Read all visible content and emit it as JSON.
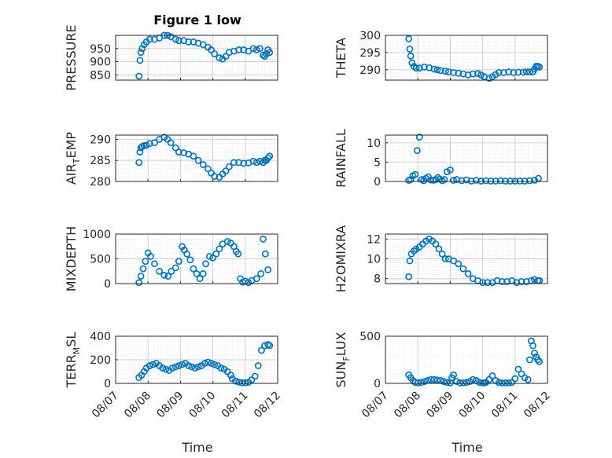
{
  "chart_data": {
    "type": "scatter",
    "title": "Figure 1 low",
    "xlabel": "Time",
    "xtick_labels": [
      "08/07",
      "08/08",
      "08/09",
      "08/10",
      "08/11",
      "08/12"
    ],
    "xlim": [
      0,
      5
    ],
    "marker": "open-circle",
    "color": "#0072BD",
    "grid": "on",
    "subplots": [
      {
        "ylabel": "PRESSURE",
        "ylim": [
          830,
          1000
        ],
        "yticks": [
          850,
          900,
          950
        ],
        "x": [
          0.72,
          0.75,
          0.78,
          0.82,
          0.88,
          0.95,
          1.05,
          1.2,
          1.35,
          1.5,
          1.6,
          1.7,
          1.85,
          1.95,
          2.1,
          2.25,
          2.4,
          2.55,
          2.7,
          2.85,
          2.95,
          3.05,
          3.2,
          3.3,
          3.4,
          3.5,
          3.65,
          3.8,
          3.95,
          4.1,
          4.25,
          4.35,
          4.45,
          4.55,
          4.6,
          4.65,
          4.7,
          4.75
        ],
        "y": [
          845,
          905,
          935,
          950,
          965,
          975,
          985,
          985,
          990,
          1000,
          1000,
          995,
          985,
          980,
          980,
          975,
          975,
          970,
          965,
          955,
          945,
          930,
          915,
          910,
          920,
          935,
          940,
          945,
          945,
          940,
          950,
          945,
          950,
          925,
          920,
          930,
          945,
          935
        ]
      },
      {
        "ylabel": "THETA",
        "ylim": [
          287,
          300
        ],
        "yticks": [
          290,
          295,
          300
        ],
        "x": [
          0.72,
          0.75,
          0.78,
          0.82,
          0.88,
          0.95,
          1.05,
          1.2,
          1.35,
          1.5,
          1.6,
          1.7,
          1.85,
          1.95,
          2.1,
          2.25,
          2.4,
          2.55,
          2.7,
          2.85,
          2.95,
          3.05,
          3.2,
          3.3,
          3.4,
          3.5,
          3.65,
          3.8,
          3.95,
          4.1,
          4.25,
          4.35,
          4.45,
          4.55,
          4.6,
          4.65,
          4.7,
          4.75
        ],
        "y": [
          299,
          296,
          294,
          292,
          291,
          290.5,
          290.5,
          290.8,
          290.6,
          290.2,
          290,
          289.8,
          289.6,
          289.4,
          289.2,
          289,
          288.8,
          288.5,
          288.8,
          288.9,
          288.5,
          288,
          287.5,
          288,
          288.6,
          289.2,
          289.2,
          289.4,
          289.2,
          289.3,
          289.3,
          289.4,
          289.4,
          289.4,
          290.2,
          291,
          291,
          290.8
        ]
      },
      {
        "ylabel": "AIR_TEMP",
        "ylim": [
          280,
          291
        ],
        "yticks": [
          280,
          285,
          290
        ],
        "x": [
          0.72,
          0.75,
          0.78,
          0.82,
          0.88,
          0.95,
          1.05,
          1.2,
          1.35,
          1.5,
          1.6,
          1.7,
          1.85,
          1.95,
          2.1,
          2.25,
          2.4,
          2.55,
          2.7,
          2.85,
          2.95,
          3.05,
          3.2,
          3.3,
          3.4,
          3.5,
          3.65,
          3.8,
          3.95,
          4.1,
          4.25,
          4.35,
          4.45,
          4.55,
          4.6,
          4.65,
          4.7,
          4.75
        ],
        "y": [
          284.5,
          287,
          288,
          288.3,
          288.5,
          288.6,
          289,
          289.2,
          290,
          290.5,
          290,
          289.2,
          288,
          287,
          286.8,
          286.5,
          286,
          285,
          284,
          283,
          282,
          281.2,
          281,
          281.8,
          282.5,
          283.5,
          284.5,
          284.5,
          284.3,
          284.4,
          284.8,
          284.5,
          284.8,
          284.5,
          285,
          285,
          285.6,
          286
        ]
      },
      {
        "ylabel": "RAINFALL",
        "ylim": [
          0,
          12
        ],
        "yticks": [
          0,
          5,
          10
        ],
        "x": [
          0.72,
          0.78,
          0.85,
          0.92,
          0.98,
          1.05,
          1.12,
          1.18,
          1.25,
          1.32,
          1.4,
          1.48,
          1.55,
          1.62,
          1.68,
          1.75,
          1.82,
          1.9,
          2.0,
          2.1,
          2.2,
          2.35,
          2.5,
          2.65,
          2.8,
          2.95,
          3.1,
          3.25,
          3.4,
          3.55,
          3.7,
          3.85,
          4.0,
          4.15,
          4.3,
          4.45,
          4.6,
          4.72
        ],
        "y": [
          0.3,
          0.5,
          1.5,
          1.8,
          8.0,
          11.5,
          0.5,
          0.2,
          0.8,
          1.2,
          0.4,
          0.3,
          0.5,
          1.0,
          0.6,
          0.2,
          0.5,
          2.5,
          3.0,
          0.3,
          0.5,
          0.2,
          0.4,
          0.1,
          0.3,
          0.1,
          0.2,
          0.1,
          0.1,
          0.2,
          0.1,
          0.1,
          0.1,
          0.1,
          0.1,
          0.2,
          0.3,
          0.8
        ]
      },
      {
        "ylabel": "MIXDEPTH",
        "ylim": [
          0,
          1000
        ],
        "yticks": [
          0,
          500,
          1000
        ],
        "x": [
          0.72,
          0.78,
          0.85,
          0.92,
          1.0,
          1.08,
          1.2,
          1.35,
          1.5,
          1.62,
          1.72,
          1.85,
          1.95,
          2.05,
          2.12,
          2.2,
          2.3,
          2.4,
          2.5,
          2.6,
          2.7,
          2.78,
          2.9,
          3.0,
          3.1,
          3.2,
          3.3,
          3.45,
          3.55,
          3.65,
          3.72,
          3.78,
          3.85,
          3.92,
          4.0,
          4.1,
          4.2,
          4.35,
          4.48,
          4.55,
          4.62,
          4.7
        ],
        "y": [
          20,
          150,
          300,
          450,
          620,
          550,
          400,
          250,
          170,
          150,
          250,
          320,
          450,
          750,
          680,
          600,
          480,
          300,
          200,
          100,
          200,
          400,
          550,
          520,
          600,
          700,
          800,
          850,
          820,
          750,
          650,
          600,
          100,
          30,
          50,
          20,
          60,
          100,
          200,
          900,
          600,
          280
        ]
      },
      {
        "ylabel": "H2OMIXRA",
        "ylim": [
          7.5,
          12.5
        ],
        "yticks": [
          8,
          10,
          12
        ],
        "x": [
          0.72,
          0.75,
          0.8,
          0.88,
          0.95,
          1.05,
          1.15,
          1.25,
          1.35,
          1.45,
          1.55,
          1.65,
          1.75,
          1.85,
          1.95,
          2.1,
          2.25,
          2.4,
          2.55,
          2.7,
          2.85,
          3.0,
          3.15,
          3.3,
          3.45,
          3.6,
          3.75,
          3.9,
          4.05,
          4.2,
          4.35,
          4.5,
          4.6,
          4.7,
          4.75
        ],
        "y": [
          8.2,
          9.8,
          10.5,
          10.8,
          11.0,
          11.2,
          11.5,
          11.8,
          12.0,
          11.8,
          11.5,
          11.0,
          10.5,
          10.0,
          10.0,
          9.8,
          9.5,
          9.0,
          8.5,
          8.0,
          7.8,
          7.6,
          7.6,
          7.6,
          7.8,
          7.7,
          7.7,
          7.8,
          7.6,
          7.7,
          7.7,
          7.8,
          7.9,
          7.8,
          7.8
        ]
      },
      {
        "ylabel": "TERR_MSL",
        "ylim": [
          0,
          400
        ],
        "yticks": [
          0,
          200,
          400
        ],
        "x": [
          0.72,
          0.8,
          0.88,
          0.95,
          1.05,
          1.15,
          1.25,
          1.35,
          1.45,
          1.55,
          1.65,
          1.75,
          1.85,
          1.95,
          2.05,
          2.15,
          2.25,
          2.35,
          2.45,
          2.55,
          2.65,
          2.75,
          2.85,
          2.95,
          3.05,
          3.15,
          3.25,
          3.35,
          3.45,
          3.55,
          3.6,
          3.7,
          3.8,
          3.9,
          4.0,
          4.1,
          4.2,
          4.3,
          4.4,
          4.5,
          4.6,
          4.7,
          4.75
        ],
        "y": [
          50,
          70,
          100,
          130,
          150,
          160,
          170,
          150,
          130,
          120,
          110,
          130,
          140,
          150,
          160,
          170,
          150,
          140,
          130,
          140,
          150,
          170,
          180,
          170,
          160,
          150,
          130,
          120,
          100,
          70,
          40,
          20,
          10,
          5,
          5,
          10,
          30,
          60,
          150,
          280,
          320,
          330,
          320
        ]
      },
      {
        "ylabel": "SUN_FLUX",
        "ylim": [
          0,
          500
        ],
        "yticks": [
          0,
          500
        ],
        "x": [
          0.72,
          0.78,
          0.85,
          0.92,
          1.0,
          1.1,
          1.2,
          1.3,
          1.4,
          1.5,
          1.6,
          1.7,
          1.8,
          1.9,
          2.0,
          2.05,
          2.1,
          2.2,
          2.3,
          2.4,
          2.5,
          2.6,
          2.7,
          2.8,
          2.9,
          3.0,
          3.05,
          3.1,
          3.2,
          3.3,
          3.4,
          3.5,
          3.6,
          3.7,
          3.8,
          3.9,
          4.0,
          4.1,
          4.2,
          4.3,
          4.4,
          4.45,
          4.5,
          4.55,
          4.6,
          4.65,
          4.7,
          4.75
        ],
        "y": [
          90,
          60,
          30,
          10,
          5,
          10,
          20,
          30,
          40,
          40,
          35,
          30,
          20,
          10,
          5,
          60,
          90,
          20,
          5,
          5,
          10,
          20,
          40,
          30,
          10,
          5,
          5,
          10,
          40,
          80,
          30,
          10,
          5,
          5,
          5,
          10,
          50,
          150,
          100,
          60,
          40,
          250,
          450,
          400,
          320,
          280,
          250,
          230
        ]
      }
    ]
  }
}
